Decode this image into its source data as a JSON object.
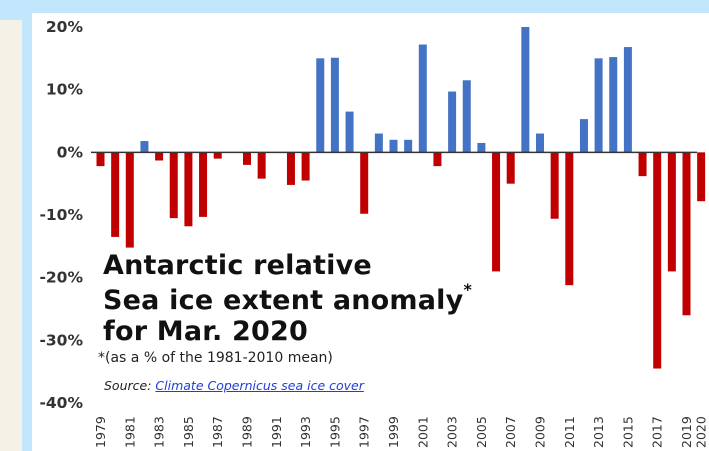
{
  "title_lines": [
    "Antarctic relative",
    "Sea ice extent anomaly",
    "for Mar. 2020"
  ],
  "title_mark": "*",
  "note": "*(as a % of the 1981-2010 mean)",
  "source_prefix": "Source:",
  "source_link": "Climate Copernicus sea ice cover",
  "colors": {
    "positive": "#4472c4",
    "negative": "#c00000",
    "zero_line": "#333333",
    "background": "#ffffff",
    "map_water": "#c2e6fb",
    "map_land": "#f4f1e6"
  },
  "chart_data": {
    "type": "bar",
    "title": "Antarctic relative Sea ice extent anomaly* for Mar. 2020",
    "ylabel": "",
    "xlabel": "",
    "y_unit": "%",
    "ylim": [
      -40,
      20
    ],
    "yticks": [
      20,
      10,
      0,
      -10,
      -20,
      -30,
      -40
    ],
    "ytick_labels": [
      "20%",
      "10%",
      "0%",
      "-10%",
      "-20%",
      "-30%",
      "-40%"
    ],
    "categories": [
      "1979",
      "1980",
      "1981",
      "1982",
      "1983",
      "1984",
      "1985",
      "1986",
      "1987",
      "1988",
      "1989",
      "1990",
      "1991",
      "1992",
      "1993",
      "1994",
      "1995",
      "1996",
      "1997",
      "1998",
      "1999",
      "2000",
      "2001",
      "2002",
      "2003",
      "2004",
      "2005",
      "2006",
      "2007",
      "2008",
      "2009",
      "2010",
      "2011",
      "2012",
      "2013",
      "2014",
      "2015",
      "2016",
      "2017",
      "2018",
      "2019",
      "2020"
    ],
    "xtick_labels": [
      "1979",
      "",
      "1981",
      "",
      "1983",
      "",
      "1985",
      "",
      "1987",
      "",
      "1989",
      "",
      "1991",
      "",
      "1993",
      "",
      "1995",
      "",
      "1997",
      "",
      "1999",
      "",
      "2001",
      "",
      "2003",
      "",
      "2005",
      "",
      "2007",
      "",
      "2009",
      "",
      "2011",
      "",
      "2013",
      "",
      "2015",
      "",
      "2017",
      "",
      "2019",
      "2020"
    ],
    "values": [
      -2.2,
      -13.5,
      -15.2,
      1.8,
      -1.3,
      -10.5,
      -11.8,
      -10.3,
      -1.0,
      0,
      -2.0,
      -4.2,
      0,
      -5.2,
      -4.5,
      15.0,
      15.1,
      6.5,
      -9.8,
      3.0,
      2.0,
      2.0,
      17.2,
      -2.2,
      9.7,
      11.5,
      1.5,
      -19.0,
      -5.0,
      20.0,
      3.0,
      -10.6,
      -21.2,
      5.3,
      15.0,
      15.2,
      16.8,
      -3.8,
      -34.5,
      -19.0,
      -26.0,
      -7.8
    ],
    "grid": false,
    "legend": "none"
  }
}
